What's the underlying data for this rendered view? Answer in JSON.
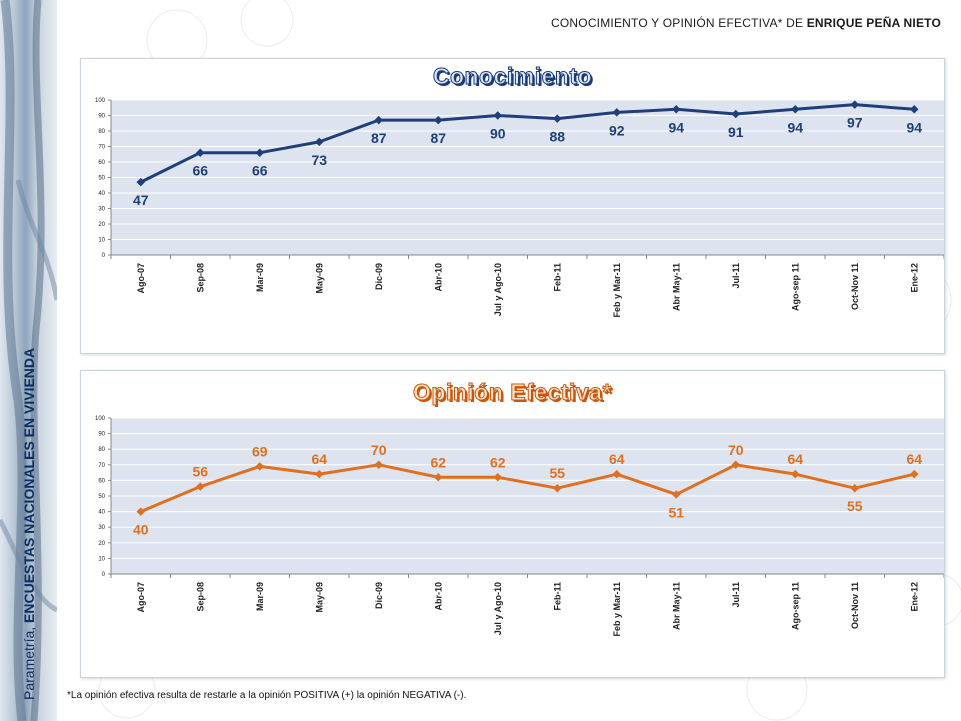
{
  "header": {
    "prefix": "CONOCIMIENTO Y OPINIÓN EFECTIVA* DE ",
    "name": "ENRIQUE PEÑA NIETO"
  },
  "sidebar": {
    "prefix": "Parametría, ",
    "bold": "ENCUESTAS NACIONALES EN VIVIENDA"
  },
  "footnote": "*La opinión efectiva resulta de restarle a la opinión POSITIVA (+) la opinión NEGATIVA (-).",
  "colors": {
    "blue": "#1f3f7a",
    "orange": "#e0701f",
    "plot_bg": "#dde4ef"
  },
  "chart_data": [
    {
      "type": "line",
      "title": "Conocimiento",
      "categories": [
        "Ago-07",
        "Sep-08",
        "Mar-09",
        "May-09",
        "Dic-09",
        "Abr-10",
        "Jul y Ago-10",
        "Feb-11",
        "Feb y Mar-11",
        "Abr May-11",
        "Jul-11",
        "Ago-sep 11",
        "Oct-Nov 11",
        "Ene-12"
      ],
      "values": [
        47,
        66,
        66,
        73,
        87,
        87,
        90,
        88,
        92,
        94,
        91,
        94,
        97,
        94
      ],
      "ylim": [
        0,
        100
      ],
      "yticks": [
        0,
        10,
        20,
        30,
        40,
        50,
        60,
        70,
        80,
        90,
        100
      ],
      "grid": true,
      "color": "#1f3f7a"
    },
    {
      "type": "line",
      "title": "Opinión Efectiva*",
      "categories": [
        "Ago-07",
        "Sep-08",
        "Mar-09",
        "May-09",
        "Dic-09",
        "Abr-10",
        "Jul y Ago-10",
        "Feb-11",
        "Feb y Mar-11",
        "Abr May-11",
        "Jul-11",
        "Ago-sep 11",
        "Oct-Nov 11",
        "Ene-12"
      ],
      "values": [
        40,
        56,
        69,
        64,
        70,
        62,
        62,
        55,
        64,
        51,
        70,
        64,
        55,
        64
      ],
      "ylim": [
        0,
        100
      ],
      "yticks": [
        0,
        10,
        20,
        30,
        40,
        50,
        60,
        70,
        80,
        90,
        100
      ],
      "grid": true,
      "color": "#e0701f"
    }
  ]
}
